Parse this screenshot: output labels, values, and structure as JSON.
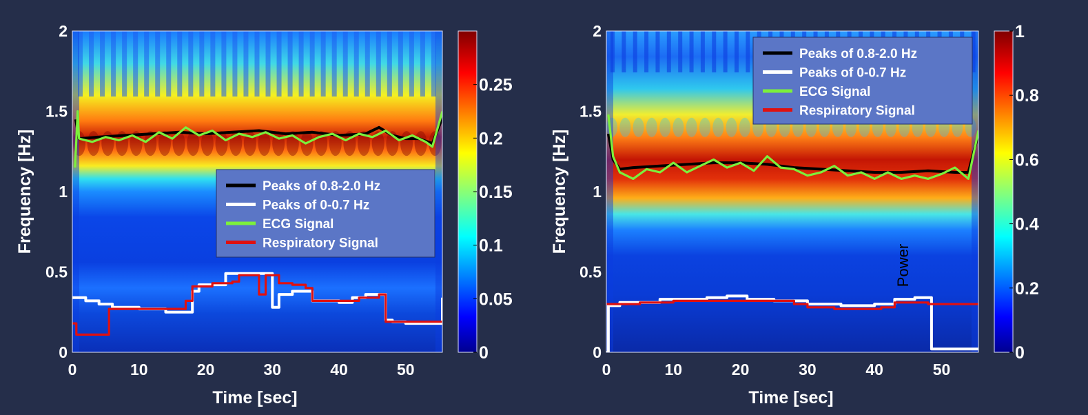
{
  "chart_data": [
    {
      "type": "heatmap",
      "name": "left",
      "xlabel": "Time [sec]",
      "ylabel": "Frequency [Hz]",
      "xlim": [
        0,
        55.5
      ],
      "ylim": [
        0,
        2
      ],
      "xticks": [
        "0",
        "10",
        "20",
        "30",
        "40",
        "50"
      ],
      "xtick_values": [
        0,
        10,
        20,
        30,
        40,
        50
      ],
      "yticks": [
        "0",
        "0.5",
        "1",
        "1.5",
        "2"
      ],
      "ytick_values": [
        0,
        0.5,
        1,
        1.5,
        2
      ],
      "colorbar": {
        "min": 0,
        "max": 0.3,
        "ticks": [
          "0",
          "0.05",
          "0.1",
          "0.15",
          "0.2",
          "0.25"
        ],
        "tick_values": [
          0,
          0.05,
          0.1,
          0.15,
          0.2,
          0.25
        ]
      },
      "legend": {
        "position": "center-right",
        "entries": [
          {
            "label": "Peaks of 0.8-2.0 Hz",
            "color": "#000000"
          },
          {
            "label": "Peaks of 0-0.7 Hz",
            "color": "#ffffff"
          },
          {
            "label": "ECG Signal",
            "color": "#7cf03c"
          },
          {
            "label": "Respiratory Signal",
            "color": "#e01010"
          }
        ]
      },
      "series": [
        {
          "name": "Peaks of 0.8-2.0 Hz",
          "color": "#000000",
          "x": [
            0.5,
            1,
            4,
            8,
            12,
            16,
            20,
            24,
            28,
            32,
            36,
            40,
            44,
            46,
            48,
            50,
            52,
            54,
            55.5
          ],
          "y": [
            1.45,
            1.33,
            1.34,
            1.35,
            1.36,
            1.37,
            1.36,
            1.37,
            1.38,
            1.36,
            1.37,
            1.35,
            1.36,
            1.4,
            1.35,
            1.33,
            1.33,
            1.3,
            1.46
          ]
        },
        {
          "name": "ECG Signal",
          "color": "#7cf03c",
          "x": [
            0.4,
            0.8,
            1,
            3,
            5,
            7,
            9,
            11,
            13,
            15,
            17,
            19,
            21,
            23,
            25,
            27,
            29,
            31,
            33,
            35,
            37,
            39,
            41,
            43,
            45,
            47,
            49,
            51,
            53,
            54,
            55.5
          ],
          "y": [
            1.15,
            1.5,
            1.33,
            1.31,
            1.34,
            1.32,
            1.35,
            1.31,
            1.37,
            1.33,
            1.4,
            1.35,
            1.38,
            1.32,
            1.36,
            1.34,
            1.37,
            1.33,
            1.35,
            1.3,
            1.34,
            1.36,
            1.32,
            1.36,
            1.34,
            1.38,
            1.32,
            1.35,
            1.31,
            1.28,
            1.5
          ]
        },
        {
          "name": "Peaks of 0-0.7 Hz",
          "color": "#ffffff",
          "step": true,
          "x": [
            0,
            2,
            4,
            6,
            10,
            14,
            18,
            19,
            23,
            25,
            27,
            30,
            31,
            33,
            36,
            40,
            42,
            44,
            47,
            48,
            50,
            55.5
          ],
          "y": [
            0.34,
            0.32,
            0.3,
            0.28,
            0.27,
            0.25,
            0.38,
            0.42,
            0.49,
            0.49,
            0.49,
            0.28,
            0.36,
            0.38,
            0.32,
            0.31,
            0.34,
            0.36,
            0.2,
            0.19,
            0.18,
            0.34
          ]
        },
        {
          "name": "Respiratory Signal",
          "color": "#e01010",
          "step": true,
          "x": [
            0,
            0.6,
            5.5,
            15,
            17,
            18,
            21,
            24,
            25,
            28,
            29,
            31,
            33,
            35,
            36,
            38,
            43,
            46,
            47,
            55.5
          ],
          "y": [
            0.18,
            0.11,
            0.27,
            0.27,
            0.32,
            0.41,
            0.43,
            0.44,
            0.48,
            0.36,
            0.48,
            0.43,
            0.42,
            0.4,
            0.32,
            0.32,
            0.34,
            0.36,
            0.19,
            0.19
          ]
        }
      ]
    },
    {
      "type": "heatmap",
      "name": "right",
      "xlabel": "Time [sec]",
      "ylabel": "Frequency [Hz]",
      "xlim": [
        0,
        55.5
      ],
      "ylim": [
        0,
        2
      ],
      "xticks": [
        "0",
        "10",
        "20",
        "30",
        "40",
        "50"
      ],
      "xtick_values": [
        0,
        10,
        20,
        30,
        40,
        50
      ],
      "yticks": [
        "0",
        "0.5",
        "1",
        "1.5",
        "2"
      ],
      "ytick_values": [
        0,
        0.5,
        1,
        1.5,
        2
      ],
      "colorbar": {
        "min": 0,
        "max": 1,
        "ticks": [
          "0",
          "0.2",
          "0.4",
          "0.6",
          "0.8",
          "1"
        ],
        "tick_values": [
          0,
          0.2,
          0.4,
          0.6,
          0.8,
          1
        ]
      },
      "annotation": "Power",
      "legend": {
        "position": "top-right",
        "entries": [
          {
            "label": "Peaks of 0.8-2.0 Hz",
            "color": "#000000"
          },
          {
            "label": "Peaks of 0-0.7 Hz",
            "color": "#ffffff"
          },
          {
            "label": "ECG Signal",
            "color": "#7cf03c"
          },
          {
            "label": "Respiratory Signal",
            "color": "#e01010"
          }
        ]
      },
      "series": [
        {
          "name": "Peaks of 0.8-2.0 Hz",
          "color": "#000000",
          "x": [
            0.3,
            1,
            2,
            4,
            8,
            12,
            16,
            20,
            24,
            28,
            32,
            36,
            40,
            44,
            48,
            52,
            54,
            55.5
          ],
          "y": [
            1.36,
            1.2,
            1.14,
            1.15,
            1.16,
            1.17,
            1.18,
            1.18,
            1.17,
            1.15,
            1.14,
            1.13,
            1.12,
            1.12,
            1.13,
            1.12,
            1.12,
            1.36
          ]
        },
        {
          "name": "ECG Signal",
          "color": "#7cf03c",
          "x": [
            0.3,
            1,
            2,
            4,
            6,
            8,
            10,
            12,
            14,
            16,
            18,
            20,
            22,
            24,
            26,
            28,
            30,
            32,
            34,
            36,
            38,
            40,
            42,
            44,
            46,
            48,
            50,
            52,
            54,
            55.5
          ],
          "y": [
            1.48,
            1.22,
            1.12,
            1.08,
            1.14,
            1.12,
            1.18,
            1.12,
            1.16,
            1.2,
            1.15,
            1.18,
            1.13,
            1.22,
            1.15,
            1.14,
            1.1,
            1.12,
            1.16,
            1.1,
            1.12,
            1.08,
            1.12,
            1.08,
            1.1,
            1.08,
            1.11,
            1.15,
            1.08,
            1.38
          ]
        },
        {
          "name": "Peaks of 0-0.7 Hz",
          "color": "#ffffff",
          "step": true,
          "x": [
            0,
            0.3,
            2,
            8,
            15,
            18,
            21,
            25,
            30,
            35,
            40,
            43,
            46,
            48.5,
            55.5
          ],
          "y": [
            0.0,
            0.29,
            0.31,
            0.33,
            0.34,
            0.35,
            0.33,
            0.32,
            0.3,
            0.29,
            0.3,
            0.33,
            0.34,
            0.02,
            0.02
          ]
        },
        {
          "name": "Respiratory Signal",
          "color": "#e01010",
          "step": true,
          "x": [
            0,
            5,
            10,
            20,
            25,
            28,
            30,
            34,
            38,
            41,
            43,
            46,
            48,
            55.5
          ],
          "y": [
            0.3,
            0.31,
            0.32,
            0.32,
            0.32,
            0.3,
            0.28,
            0.27,
            0.27,
            0.28,
            0.31,
            0.31,
            0.3,
            0.3
          ]
        }
      ]
    }
  ]
}
